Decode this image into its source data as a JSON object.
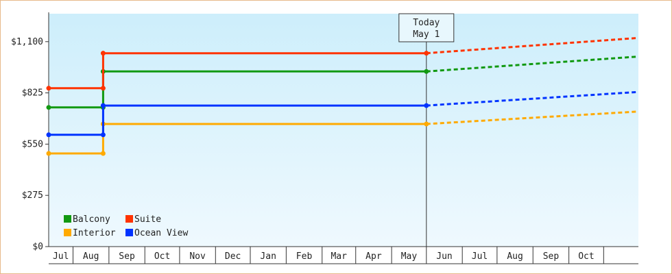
{
  "chart_data": {
    "type": "line",
    "title": "",
    "xlabel": "",
    "ylabel": "",
    "ylim": [
      0,
      1250
    ],
    "y_ticks": [
      "$0",
      "$275",
      "$550",
      "$825",
      "$1,100"
    ],
    "y_tick_values": [
      0,
      275,
      550,
      825,
      1100
    ],
    "x_tick_labels": [
      "Jul",
      "Aug",
      "Sep",
      "Oct",
      "Nov",
      "Dec",
      "Jan",
      "Feb",
      "Mar",
      "Apr",
      "May",
      "Jun",
      "Jul",
      "Aug",
      "Sep",
      "Oct"
    ],
    "x_start": "2023-06-10",
    "x_end": "2024-10-31",
    "x_tick_dates": [
      "2023-06-01",
      "2023-07-01",
      "2023-08-01",
      "2023-09-01",
      "2023-10-01",
      "2023-11-01",
      "2023-12-01",
      "2024-01-01",
      "2024-02-01",
      "2024-03-01",
      "2024-04-01",
      "2024-05-01",
      "2024-06-01",
      "2024-07-01",
      "2024-08-01",
      "2024-09-01",
      "2024-10-01"
    ],
    "today": {
      "date": "2024-05-01",
      "line1": "Today",
      "line2": "May 1"
    },
    "grid": false,
    "legend_position": "bottom-left",
    "series": [
      {
        "name": "Balcony",
        "color": "#119911",
        "points": [
          [
            "2023-06-10",
            747
          ],
          [
            "2023-07-27",
            747
          ],
          [
            "2023-07-27",
            940
          ],
          [
            "2024-05-01",
            940
          ]
        ],
        "projection": [
          [
            "2024-05-01",
            940
          ],
          [
            "2024-10-31",
            1020
          ]
        ]
      },
      {
        "name": "Suite",
        "color": "#ff3300",
        "points": [
          [
            "2023-06-10",
            850
          ],
          [
            "2023-07-27",
            850
          ],
          [
            "2023-07-27",
            1038
          ],
          [
            "2024-05-01",
            1038
          ]
        ],
        "projection": [
          [
            "2024-05-01",
            1038
          ],
          [
            "2024-10-31",
            1120
          ]
        ]
      },
      {
        "name": "Interior",
        "color": "#ffaa00",
        "points": [
          [
            "2023-06-10",
            500
          ],
          [
            "2023-07-27",
            500
          ],
          [
            "2023-07-27",
            658
          ],
          [
            "2024-05-01",
            658
          ]
        ],
        "projection": [
          [
            "2024-05-01",
            658
          ],
          [
            "2024-10-31",
            725
          ]
        ]
      },
      {
        "name": "Ocean View",
        "color": "#0033ff",
        "points": [
          [
            "2023-06-10",
            600
          ],
          [
            "2023-07-27",
            600
          ],
          [
            "2023-07-27",
            757
          ],
          [
            "2024-05-01",
            757
          ]
        ],
        "projection": [
          [
            "2024-05-01",
            757
          ],
          [
            "2024-10-31",
            830
          ]
        ]
      }
    ]
  }
}
